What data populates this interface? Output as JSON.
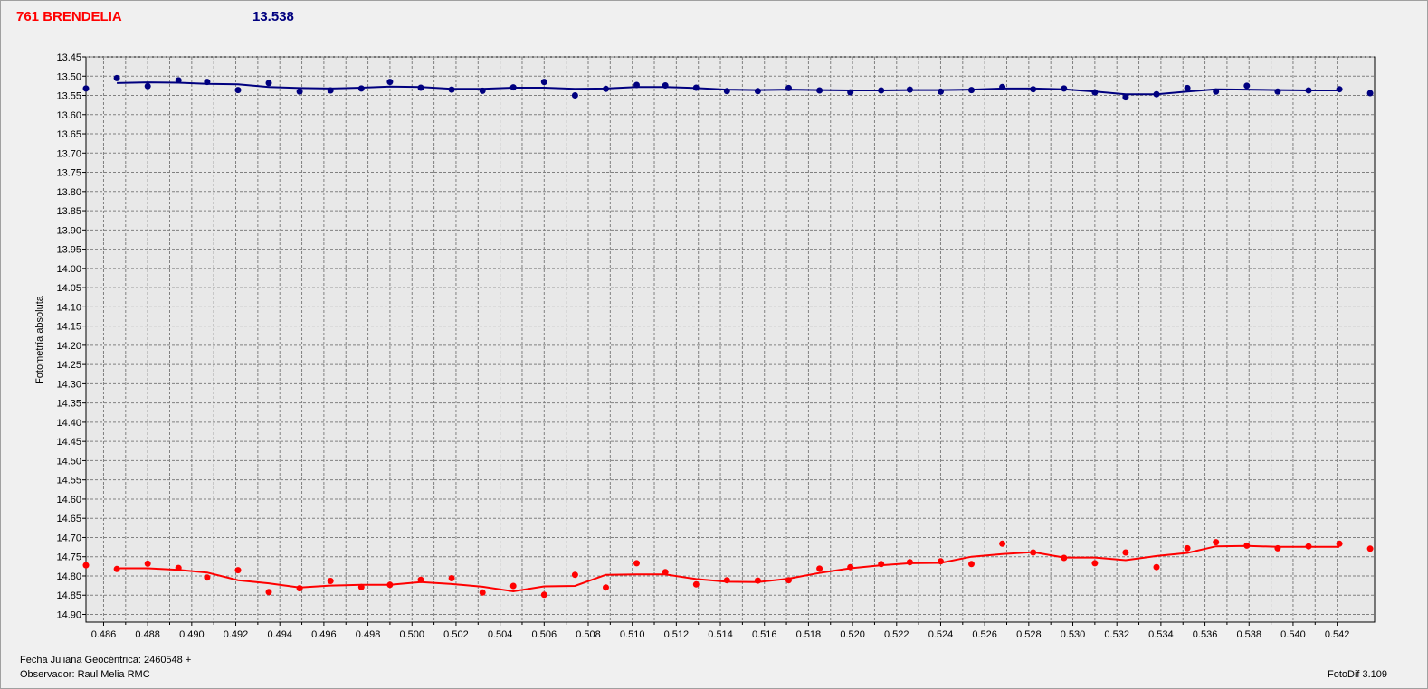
{
  "header": {
    "object_name": "761 BRENDELIA",
    "mean_mag": "13.538"
  },
  "footer": {
    "julian_date": "Fecha Juliana Geocéntrica: 2460548 +",
    "observer": "Observador: Raul Melia RMC",
    "software": "FotoDif 3.109"
  },
  "colors": {
    "blue": "#00007f",
    "red": "#ff0000",
    "plot_bg": "#e8e8e8",
    "grid": "#808080"
  },
  "chart_data": {
    "type": "scatter",
    "title": "",
    "xlabel": "",
    "ylabel": "Fotometría absoluta",
    "xlim": [
      0.4852,
      0.5437
    ],
    "ylim": [
      13.45,
      14.92
    ],
    "y_inverted": true,
    "grid": true,
    "x_ticks": [
      "0.486",
      "0.488",
      "0.490",
      "0.492",
      "0.494",
      "0.496",
      "0.498",
      "0.500",
      "0.502",
      "0.504",
      "0.506",
      "0.508",
      "0.510",
      "0.512",
      "0.514",
      "0.516",
      "0.518",
      "0.520",
      "0.522",
      "0.524",
      "0.526",
      "0.528",
      "0.530",
      "0.532",
      "0.534",
      "0.536",
      "0.538",
      "0.540",
      "0.542"
    ],
    "y_ticks": [
      "13.45",
      "13.50",
      "13.55",
      "13.60",
      "13.65",
      "13.70",
      "13.75",
      "13.80",
      "13.85",
      "13.90",
      "13.95",
      "14.00",
      "14.05",
      "14.10",
      "14.15",
      "14.20",
      "14.25",
      "14.30",
      "14.35",
      "14.40",
      "14.45",
      "14.50",
      "14.55",
      "14.60",
      "14.65",
      "14.70",
      "14.75",
      "14.80",
      "14.85",
      "14.90"
    ],
    "series": [
      {
        "color": "#00007f",
        "points": [
          [
            0.4852,
            13.532
          ],
          [
            0.4866,
            13.505
          ],
          [
            0.488,
            13.526
          ],
          [
            0.4894,
            13.511
          ],
          [
            0.4907,
            13.515
          ],
          [
            0.4921,
            13.536
          ],
          [
            0.4935,
            13.518
          ],
          [
            0.4949,
            13.54
          ],
          [
            0.4963,
            13.537
          ],
          [
            0.4977,
            13.532
          ],
          [
            0.499,
            13.515
          ],
          [
            0.5004,
            13.53
          ],
          [
            0.5018,
            13.535
          ],
          [
            0.5032,
            13.538
          ],
          [
            0.5046,
            13.529
          ],
          [
            0.506,
            13.515
          ],
          [
            0.5074,
            13.55
          ],
          [
            0.5088,
            13.533
          ],
          [
            0.5102,
            13.523
          ],
          [
            0.5115,
            13.524
          ],
          [
            0.5129,
            13.53
          ],
          [
            0.5143,
            13.539
          ],
          [
            0.5157,
            13.539
          ],
          [
            0.5171,
            13.531
          ],
          [
            0.5185,
            13.537
          ],
          [
            0.5199,
            13.542
          ],
          [
            0.5213,
            13.537
          ],
          [
            0.5226,
            13.535
          ],
          [
            0.524,
            13.54
          ],
          [
            0.5254,
            13.536
          ],
          [
            0.5268,
            13.528
          ],
          [
            0.5282,
            13.534
          ],
          [
            0.5296,
            13.532
          ],
          [
            0.531,
            13.542
          ],
          [
            0.5324,
            13.555
          ],
          [
            0.5338,
            13.547
          ],
          [
            0.5352,
            13.531
          ],
          [
            0.5365,
            13.54
          ],
          [
            0.5379,
            13.525
          ],
          [
            0.5393,
            13.54
          ],
          [
            0.5407,
            13.537
          ],
          [
            0.5421,
            13.534
          ],
          [
            0.5435,
            13.544
          ]
        ],
        "fit": [
          [
            0.4866,
            13.518
          ],
          [
            0.488,
            13.516
          ],
          [
            0.4894,
            13.517
          ],
          [
            0.4907,
            13.52
          ],
          [
            0.4921,
            13.521
          ],
          [
            0.4935,
            13.528
          ],
          [
            0.4949,
            13.531
          ],
          [
            0.4963,
            13.532
          ],
          [
            0.4977,
            13.53
          ],
          [
            0.499,
            13.527
          ],
          [
            0.5004,
            13.528
          ],
          [
            0.5018,
            13.533
          ],
          [
            0.5032,
            13.533
          ],
          [
            0.5046,
            13.53
          ],
          [
            0.506,
            13.53
          ],
          [
            0.5074,
            13.533
          ],
          [
            0.5088,
            13.532
          ],
          [
            0.5102,
            13.528
          ],
          [
            0.5115,
            13.528
          ],
          [
            0.5129,
            13.531
          ],
          [
            0.5143,
            13.535
          ],
          [
            0.5157,
            13.536
          ],
          [
            0.5171,
            13.535
          ],
          [
            0.5185,
            13.536
          ],
          [
            0.5199,
            13.537
          ],
          [
            0.5213,
            13.537
          ],
          [
            0.5226,
            13.536
          ],
          [
            0.524,
            13.536
          ],
          [
            0.5254,
            13.535
          ],
          [
            0.5268,
            13.532
          ],
          [
            0.5282,
            13.532
          ],
          [
            0.5296,
            13.534
          ],
          [
            0.531,
            13.54
          ],
          [
            0.5324,
            13.547
          ],
          [
            0.5338,
            13.547
          ],
          [
            0.5352,
            13.54
          ],
          [
            0.5365,
            13.534
          ],
          [
            0.5379,
            13.535
          ],
          [
            0.5393,
            13.536
          ],
          [
            0.5407,
            13.537
          ],
          [
            0.5421,
            13.537
          ]
        ]
      },
      {
        "color": "#ff0000",
        "points": [
          [
            0.4852,
            14.772
          ],
          [
            0.4866,
            14.782
          ],
          [
            0.488,
            14.768
          ],
          [
            0.4894,
            14.779
          ],
          [
            0.4907,
            14.804
          ],
          [
            0.4921,
            14.785
          ],
          [
            0.4935,
            14.842
          ],
          [
            0.4949,
            14.832
          ],
          [
            0.4963,
            14.813
          ],
          [
            0.4977,
            14.829
          ],
          [
            0.499,
            14.823
          ],
          [
            0.5004,
            14.81
          ],
          [
            0.5018,
            14.806
          ],
          [
            0.5032,
            14.843
          ],
          [
            0.5046,
            14.826
          ],
          [
            0.506,
            14.849
          ],
          [
            0.5074,
            14.797
          ],
          [
            0.5088,
            14.83
          ],
          [
            0.5102,
            14.767
          ],
          [
            0.5115,
            14.79
          ],
          [
            0.5129,
            14.822
          ],
          [
            0.5143,
            14.811
          ],
          [
            0.5157,
            14.812
          ],
          [
            0.5171,
            14.811
          ],
          [
            0.5185,
            14.781
          ],
          [
            0.5199,
            14.777
          ],
          [
            0.5213,
            14.769
          ],
          [
            0.5226,
            14.764
          ],
          [
            0.524,
            14.762
          ],
          [
            0.5254,
            14.769
          ],
          [
            0.5268,
            14.716
          ],
          [
            0.5282,
            14.739
          ],
          [
            0.5296,
            14.753
          ],
          [
            0.531,
            14.767
          ],
          [
            0.5324,
            14.739
          ],
          [
            0.5338,
            14.777
          ],
          [
            0.5352,
            14.728
          ],
          [
            0.5365,
            14.712
          ],
          [
            0.5379,
            14.721
          ],
          [
            0.5393,
            14.728
          ],
          [
            0.5407,
            14.723
          ],
          [
            0.5421,
            14.716
          ],
          [
            0.5435,
            14.729
          ]
        ],
        "fit": [
          [
            0.4866,
            14.78
          ],
          [
            0.488,
            14.78
          ],
          [
            0.4894,
            14.784
          ],
          [
            0.4907,
            14.791
          ],
          [
            0.4921,
            14.811
          ],
          [
            0.4935,
            14.819
          ],
          [
            0.4949,
            14.83
          ],
          [
            0.4963,
            14.825
          ],
          [
            0.4977,
            14.823
          ],
          [
            0.499,
            14.823
          ],
          [
            0.5004,
            14.816
          ],
          [
            0.5018,
            14.821
          ],
          [
            0.5032,
            14.828
          ],
          [
            0.5046,
            14.84
          ],
          [
            0.506,
            14.827
          ],
          [
            0.5074,
            14.826
          ],
          [
            0.5088,
            14.797
          ],
          [
            0.5102,
            14.796
          ],
          [
            0.5115,
            14.796
          ],
          [
            0.5129,
            14.808
          ],
          [
            0.5143,
            14.815
          ],
          [
            0.5157,
            14.816
          ],
          [
            0.5171,
            14.807
          ],
          [
            0.5185,
            14.792
          ],
          [
            0.5199,
            14.78
          ],
          [
            0.5213,
            14.772
          ],
          [
            0.5226,
            14.767
          ],
          [
            0.524,
            14.766
          ],
          [
            0.5254,
            14.75
          ],
          [
            0.5268,
            14.743
          ],
          [
            0.5282,
            14.738
          ],
          [
            0.5296,
            14.752
          ],
          [
            0.531,
            14.752
          ],
          [
            0.5324,
            14.759
          ],
          [
            0.5338,
            14.748
          ],
          [
            0.5352,
            14.74
          ],
          [
            0.5365,
            14.723
          ],
          [
            0.5379,
            14.722
          ],
          [
            0.5393,
            14.724
          ],
          [
            0.5407,
            14.724
          ],
          [
            0.5421,
            14.724
          ]
        ]
      }
    ]
  }
}
